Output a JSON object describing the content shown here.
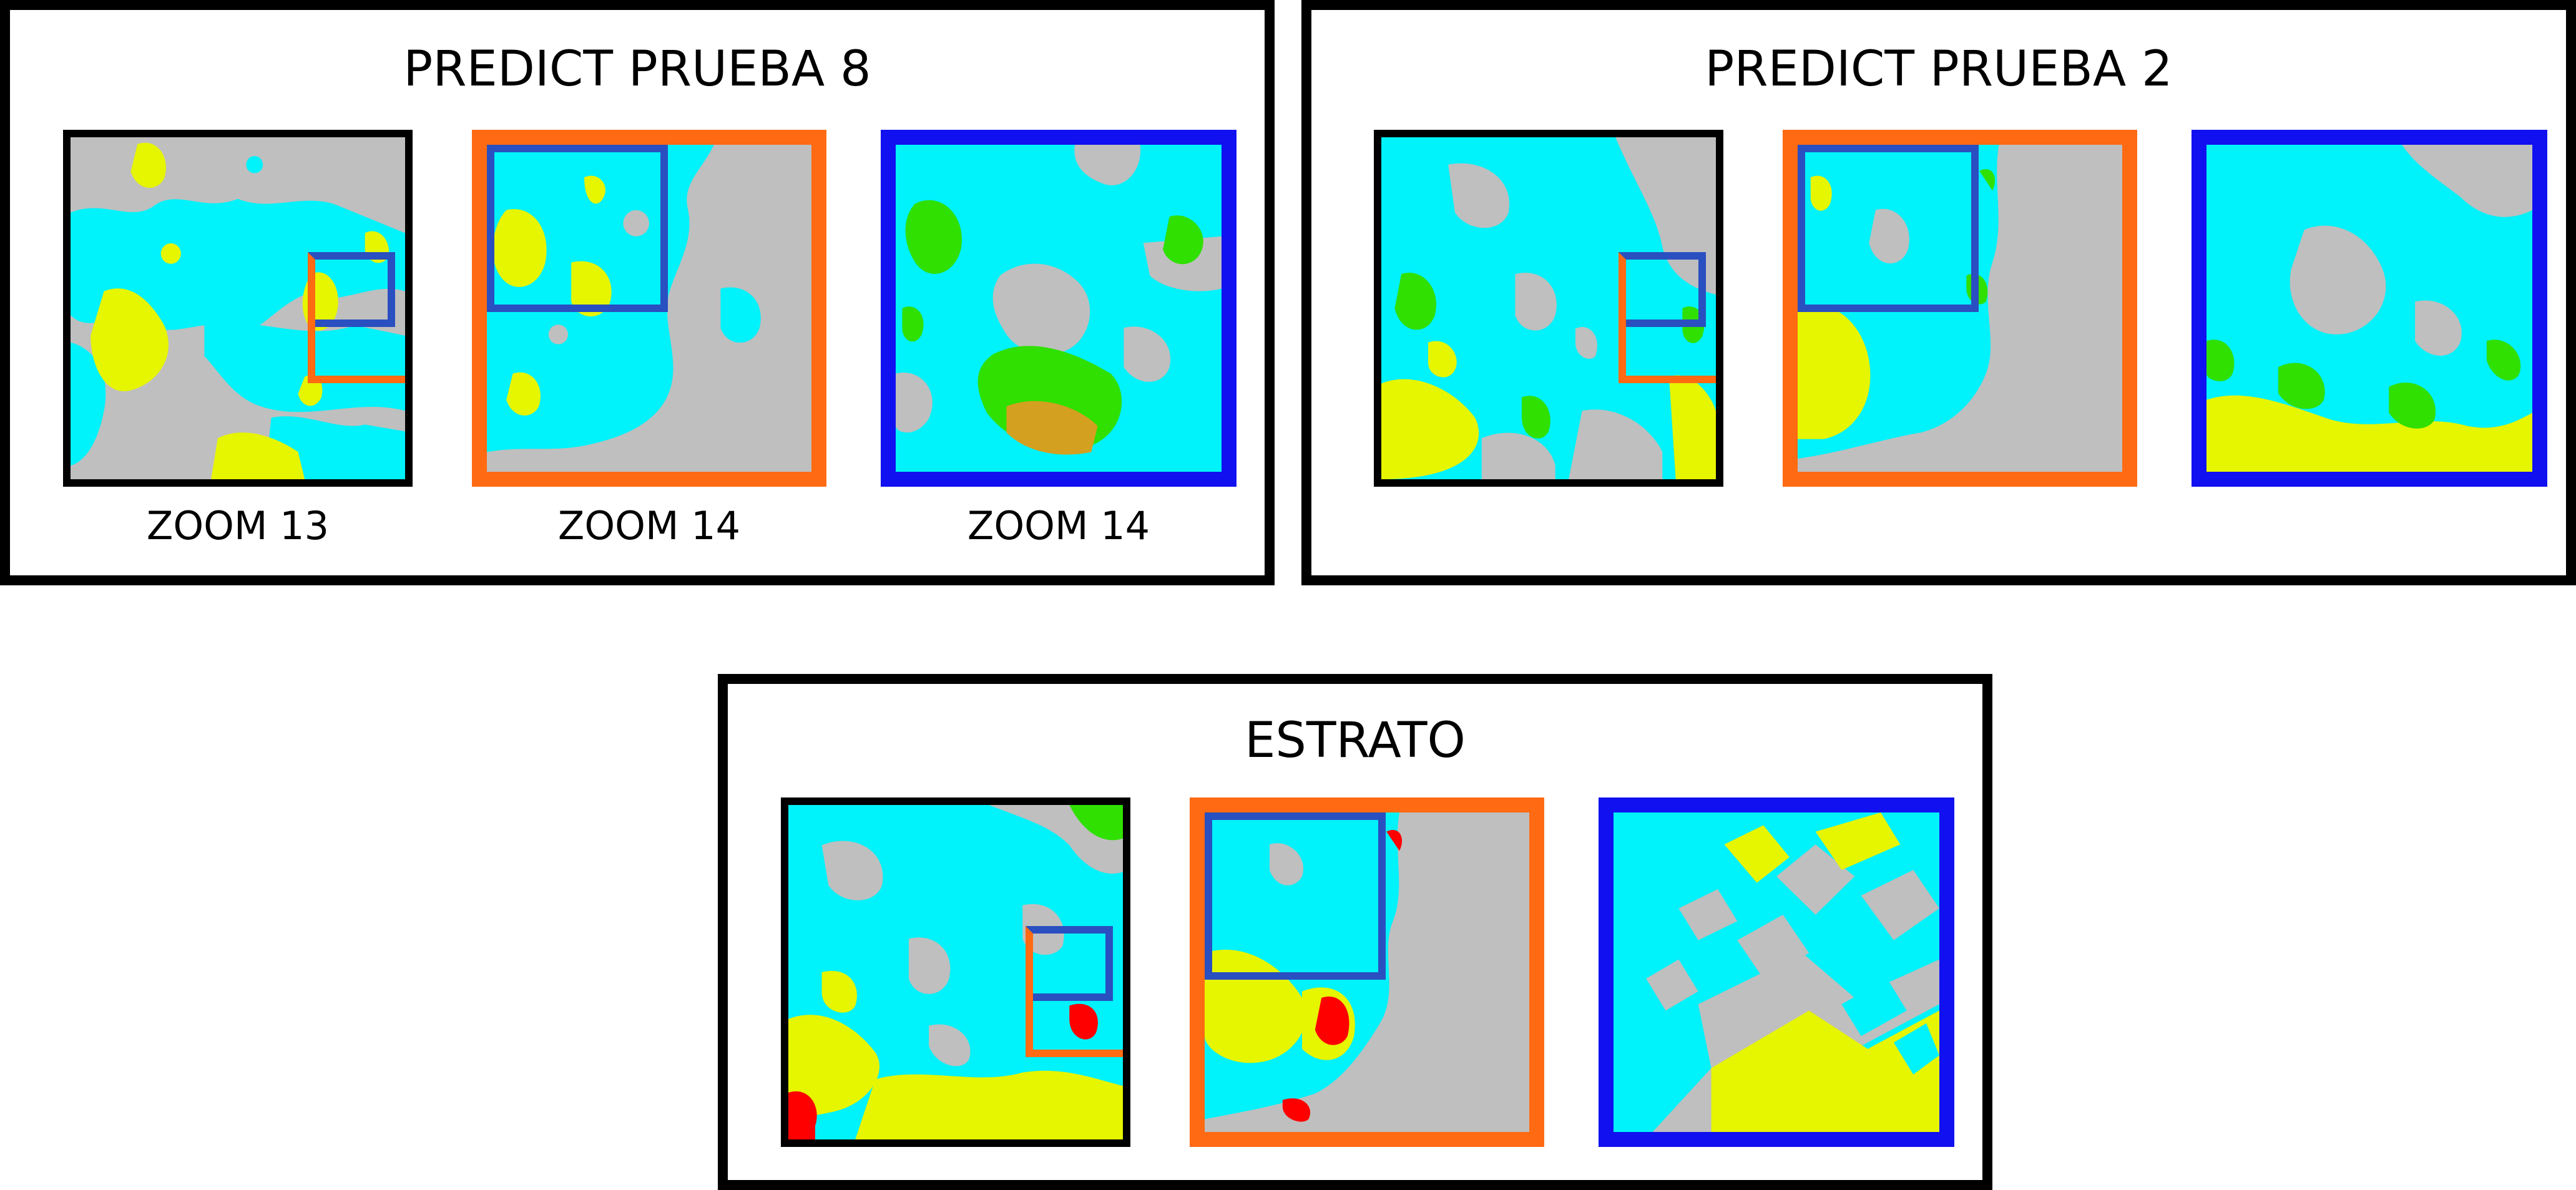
{
  "colors": {
    "gray": "#bfbfbf",
    "cyan": "#00f2fa",
    "yellow": "#e6f500",
    "green": "#2fe000",
    "red": "#ff0000",
    "orange_frame": "#ff6a13",
    "blue_frame": "#1010f0",
    "inset_blue": "#2a4fc0"
  },
  "panels": [
    {
      "title": "PREDICT PRUEBA 8",
      "maps": [
        {
          "label": "ZOOM 13",
          "frame": "black"
        },
        {
          "label": "ZOOM 14",
          "frame": "orange"
        },
        {
          "label": "ZOOM 14",
          "frame": "blue"
        }
      ]
    },
    {
      "title": "PREDICT PRUEBA 2",
      "maps": [
        {
          "label": "",
          "frame": "black"
        },
        {
          "label": "",
          "frame": "orange"
        },
        {
          "label": "",
          "frame": "blue"
        }
      ]
    },
    {
      "title": "ESTRATO",
      "maps": [
        {
          "label": "",
          "frame": "black"
        },
        {
          "label": "",
          "frame": "orange"
        },
        {
          "label": "",
          "frame": "blue"
        }
      ]
    }
  ]
}
